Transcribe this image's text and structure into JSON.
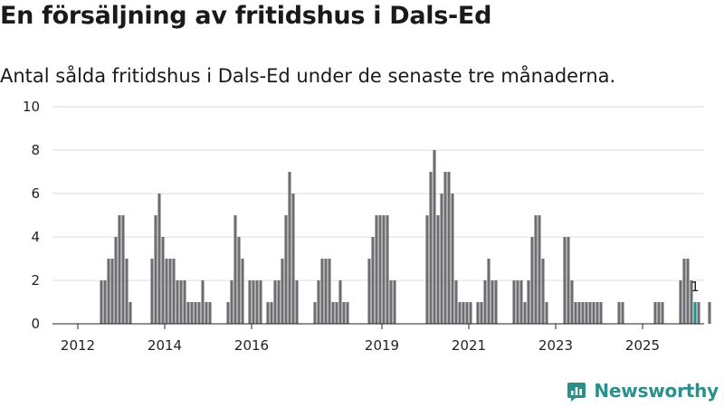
{
  "header": {
    "title": "En försäljning av fritidshus i Dals-Ed",
    "subtitle": "Antal sålda fritidshus i Dals-Ed under de senaste tre månaderna."
  },
  "brand": {
    "name": "Newsworthy",
    "logo_icon": "newsworthy-chart-icon",
    "color": "#2b8f8c"
  },
  "colors": {
    "bar": "#6d6d72",
    "highlight": "#1f8f8f",
    "grid": "#dddddd"
  },
  "chart_data": {
    "type": "bar",
    "title": "En försäljning av fritidshus i Dals-Ed",
    "subtitle": "Antal sålda fritidshus i Dals-Ed under de senaste tre månaderna.",
    "xlabel": "",
    "ylabel": "",
    "ylim": [
      0,
      10
    ],
    "yticks": [
      0,
      2,
      4,
      6,
      8,
      10
    ],
    "grid": true,
    "x_tick_labels": [
      "2012",
      "2014",
      "2016",
      "2019",
      "2021",
      "2023",
      "2025"
    ],
    "x_tick_dates": [
      "2012-01",
      "2014-01",
      "2016-01",
      "2019-01",
      "2021-01",
      "2023-01",
      "2025-01"
    ],
    "x_range": [
      "2011-06",
      "2026-06"
    ],
    "highlight_index": 164,
    "highlight_label": "1",
    "series": [
      {
        "start_month": "2012-07",
        "values": [
          2,
          2,
          3,
          3,
          4,
          5,
          5,
          3,
          1,
          0,
          0,
          0,
          0,
          0,
          3,
          5,
          6,
          4,
          3,
          3,
          3,
          2,
          2,
          2,
          1,
          1,
          1,
          1,
          2,
          1,
          1,
          0,
          0,
          0,
          0,
          1,
          2,
          5,
          4,
          3,
          0,
          2,
          2,
          2,
          2,
          0,
          1,
          1,
          2,
          2,
          3,
          5,
          7,
          6,
          2,
          0,
          0,
          0,
          0,
          1,
          2,
          3,
          3,
          3,
          1,
          1,
          2,
          1,
          1,
          0,
          0,
          0,
          0,
          0,
          3,
          4,
          5,
          5,
          5,
          5,
          2,
          2,
          0,
          0,
          0,
          0,
          0,
          0,
          0,
          0,
          5,
          7,
          8,
          5,
          6,
          7,
          7,
          6,
          2,
          1,
          1,
          1,
          1,
          0,
          1,
          1,
          2,
          3,
          2,
          2,
          0,
          0,
          0,
          0,
          2,
          2,
          2,
          1,
          2,
          4,
          5,
          5,
          3,
          1,
          0,
          0,
          0,
          0,
          4,
          4,
          2,
          1,
          1,
          1,
          1,
          1,
          1,
          1,
          1,
          0,
          0,
          0,
          0,
          1,
          1,
          0,
          0,
          0,
          0,
          0,
          0,
          0,
          0,
          1,
          1,
          1,
          0,
          0,
          0,
          0,
          2,
          3,
          3,
          2,
          1,
          1,
          0,
          0,
          1
        ]
      }
    ]
  }
}
